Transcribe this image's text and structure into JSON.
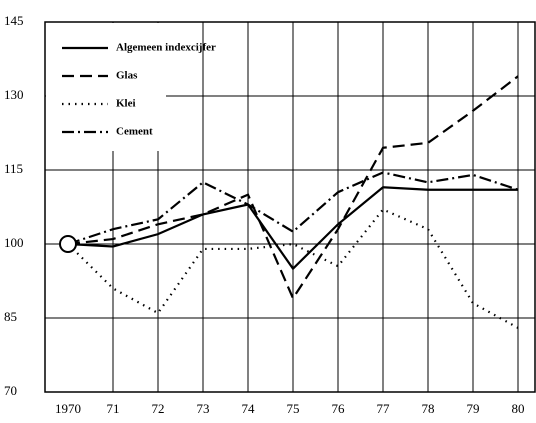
{
  "chart_data": {
    "type": "line",
    "categories": [
      "1970",
      "71",
      "72",
      "73",
      "74",
      "75",
      "76",
      "77",
      "78",
      "79",
      "80"
    ],
    "series": [
      {
        "name": "Algemeen indexcijfer",
        "color": "#000000",
        "style": "solid",
        "values": [
          100,
          99.5,
          102,
          106,
          108,
          95,
          104,
          111.5,
          111,
          111,
          111
        ]
      },
      {
        "name": "Glas",
        "color": "#000000",
        "style": "dashed",
        "values": [
          100,
          101,
          104,
          106,
          110,
          89,
          103,
          119.5,
          120.5,
          127,
          134
        ]
      },
      {
        "name": "Klei",
        "color": "#000000",
        "style": "dotted",
        "values": [
          100,
          91,
          86,
          99,
          99,
          100,
          95.5,
          107,
          103,
          88,
          83
        ]
      },
      {
        "name": "Cement",
        "color": "#000000",
        "style": "dashdot",
        "values": [
          100,
          103,
          105,
          112.5,
          108,
          102.5,
          110.5,
          114.5,
          112.5,
          114,
          111
        ]
      }
    ],
    "ylim": [
      70,
      145
    ],
    "yticks": [
      70,
      85,
      100,
      115,
      130,
      145
    ],
    "grid": true,
    "legend": "upper left"
  }
}
